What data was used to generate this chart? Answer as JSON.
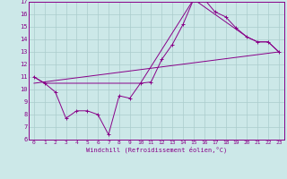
{
  "bg_color": "#cce8e8",
  "line_color": "#880088",
  "grid_color": "#aacccc",
  "xlabel": "Windchill (Refroidissement éolien,°C)",
  "xlim": [
    -0.5,
    23.5
  ],
  "ylim": [
    6,
    17
  ],
  "xticks": [
    0,
    1,
    2,
    3,
    4,
    5,
    6,
    7,
    8,
    9,
    10,
    11,
    12,
    13,
    14,
    15,
    16,
    17,
    18,
    19,
    20,
    21,
    22,
    23
  ],
  "yticks": [
    6,
    7,
    8,
    9,
    10,
    11,
    12,
    13,
    14,
    15,
    16,
    17
  ],
  "line1_x": [
    0,
    1,
    2,
    3,
    4,
    5,
    6,
    7,
    8,
    9,
    10,
    11,
    12,
    13,
    14,
    15,
    16,
    17,
    18,
    19,
    20,
    21,
    22,
    23
  ],
  "line1_y": [
    11.0,
    10.5,
    9.8,
    7.7,
    8.3,
    8.3,
    8.0,
    6.4,
    9.5,
    9.3,
    10.5,
    10.6,
    12.4,
    13.6,
    15.2,
    17.2,
    17.2,
    16.2,
    15.8,
    14.9,
    14.2,
    13.8,
    13.8,
    13.0
  ],
  "line2_x": [
    0,
    1,
    10,
    15,
    20,
    21,
    22,
    23
  ],
  "line2_y": [
    11.0,
    10.5,
    10.5,
    17.2,
    14.2,
    13.8,
    13.8,
    13.0
  ],
  "line3_x": [
    0,
    23
  ],
  "line3_y": [
    10.5,
    13.0
  ]
}
